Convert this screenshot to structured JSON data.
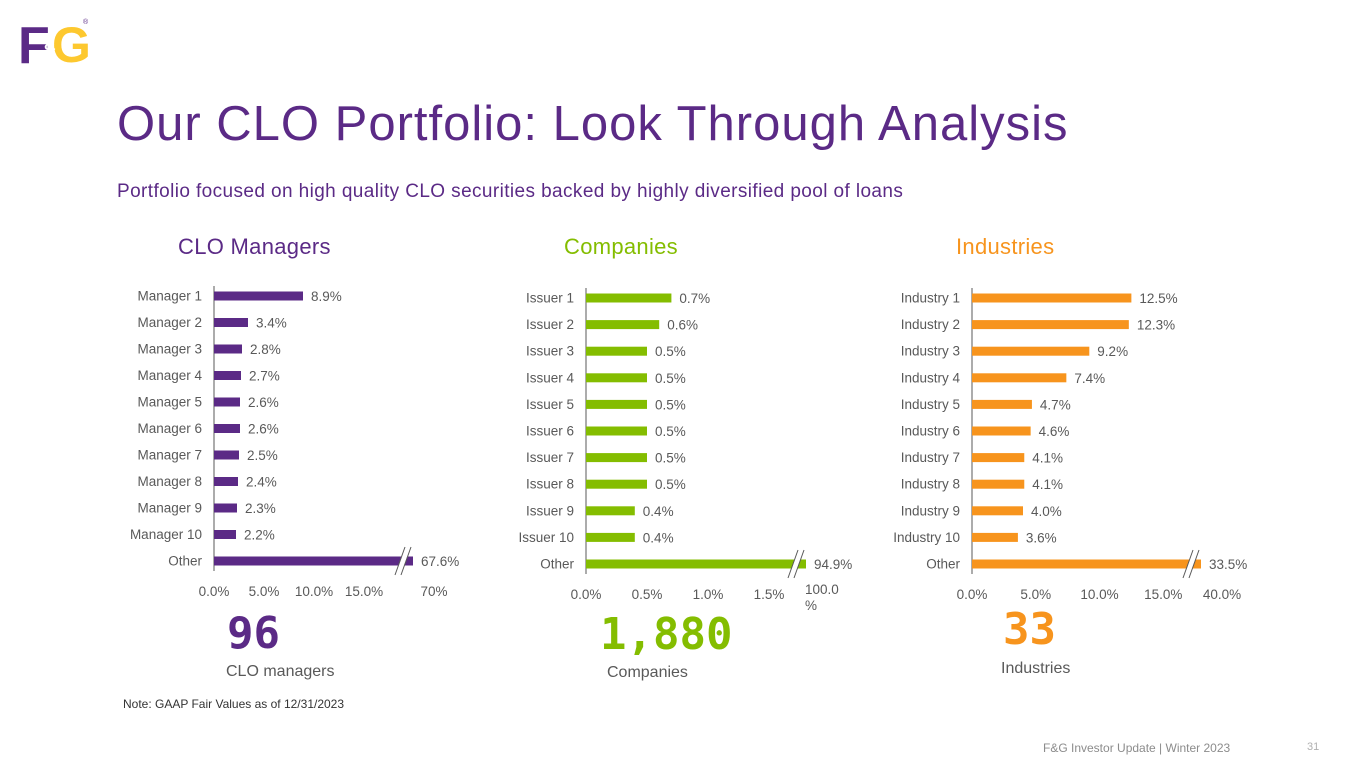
{
  "logo": {
    "text_f": "F",
    "text_amp": "&",
    "text_g": "G",
    "registered": "®"
  },
  "title": "Our CLO Portfolio: Look Through Analysis",
  "subtitle": "Portfolio focused on high quality CLO securities backed by highly diversified pool of loans",
  "colors": {
    "purple": "#5b2a86",
    "green": "#84bd00",
    "orange": "#f7941d",
    "axis": "#595959"
  },
  "chart_data": [
    {
      "type": "bar",
      "orientation": "horizontal",
      "title": "CLO Managers",
      "color": "#5b2a86",
      "categories": [
        "Manager 1",
        "Manager 2",
        "Manager 3",
        "Manager 4",
        "Manager 5",
        "Manager 6",
        "Manager 7",
        "Manager 8",
        "Manager 9",
        "Manager 10",
        "Other"
      ],
      "values": [
        8.9,
        3.4,
        2.8,
        2.7,
        2.6,
        2.6,
        2.5,
        2.4,
        2.3,
        2.2,
        67.6
      ],
      "labels": [
        "8.9%",
        "3.4%",
        "2.8%",
        "2.7%",
        "2.6%",
        "2.6%",
        "2.5%",
        "2.4%",
        "2.3%",
        "2.2%",
        "67.6%"
      ],
      "broken_axis": true,
      "xticks": [
        "0.0%",
        "5.0%",
        "10.0%",
        "15.0%",
        "70%"
      ]
    },
    {
      "type": "bar",
      "orientation": "horizontal",
      "title": "Companies",
      "color": "#84bd00",
      "categories": [
        "Issuer 1",
        "Issuer 2",
        "Issuer 3",
        "Issuer 4",
        "Issuer 5",
        "Issuer 6",
        "Issuer 7",
        "Issuer 8",
        "Issuer 9",
        "Issuer 10",
        "Other"
      ],
      "values": [
        0.7,
        0.6,
        0.5,
        0.5,
        0.5,
        0.5,
        0.5,
        0.5,
        0.4,
        0.4,
        94.9
      ],
      "labels": [
        "0.7%",
        "0.6%",
        "0.5%",
        "0.5%",
        "0.5%",
        "0.5%",
        "0.5%",
        "0.5%",
        "0.4%",
        "0.4%",
        "94.9%"
      ],
      "broken_axis": true,
      "xticks": [
        "0.0%",
        "0.5%",
        "1.0%",
        "1.5%",
        "100.0\n%"
      ]
    },
    {
      "type": "bar",
      "orientation": "horizontal",
      "title": "Industries",
      "color": "#f7941d",
      "categories": [
        "Industry 1",
        "Industry 2",
        "Industry 3",
        "Industry 4",
        "Industry 5",
        "Industry 6",
        "Industry 7",
        "Industry 8",
        "Industry 9",
        "Industry 10",
        "Other"
      ],
      "values": [
        12.5,
        12.3,
        9.2,
        7.4,
        4.7,
        4.6,
        4.1,
        4.1,
        4.0,
        3.6,
        33.5
      ],
      "labels": [
        "12.5%",
        "12.3%",
        "9.2%",
        "7.4%",
        "4.7%",
        "4.6%",
        "4.1%",
        "4.1%",
        "4.0%",
        "3.6%",
        "33.5%"
      ],
      "broken_axis": true,
      "xticks": [
        "0.0%",
        "5.0%",
        "10.0%",
        "15.0%",
        "40.0%"
      ]
    }
  ],
  "stats": [
    {
      "value": "96",
      "label": "CLO managers"
    },
    {
      "value": "1,880",
      "label": "Companies"
    },
    {
      "value": "33",
      "label": "Industries"
    }
  ],
  "note": "Note: GAAP Fair Values as of 12/31/2023",
  "footer": "F&G Investor Update | Winter 2023",
  "page_number": "31"
}
